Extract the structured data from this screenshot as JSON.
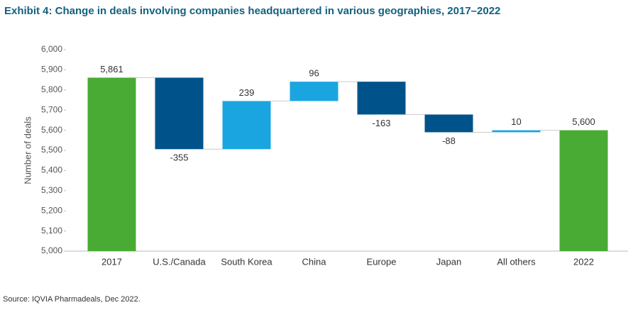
{
  "chart_data": {
    "type": "waterfall",
    "title": "Exhibit 4: Change in deals involving companies headquartered in various geographies, 2017–2022",
    "y_label": "Number of deals",
    "source": "Source: IQVIA Pharmadeals, Dec 2022.",
    "categories": [
      "2017",
      "U.S./Canada",
      "South Korea",
      "China",
      "Europe",
      "Japan",
      "All others",
      "2022"
    ],
    "measure": [
      "absolute",
      "relative",
      "relative",
      "relative",
      "relative",
      "relative",
      "relative",
      "absolute"
    ],
    "values": [
      5861,
      -355,
      239,
      96,
      -163,
      -88,
      10,
      5600
    ],
    "value_labels": [
      "5,861",
      "-355",
      "239",
      "96",
      "-163",
      "-88",
      "10",
      "5,600"
    ],
    "total_color": "#4aab34",
    "increase_color": "#1ba5e0",
    "decrease_color": "#00538a",
    "ylim": [
      5000,
      6000
    ],
    "yticks": [
      {
        "value": 5000,
        "label": "5,000"
      },
      {
        "value": 5100,
        "label": "5,100"
      },
      {
        "value": 5200,
        "label": "5,200"
      },
      {
        "value": 5300,
        "label": "5,300"
      },
      {
        "value": 5400,
        "label": "5,400"
      },
      {
        "value": 5500,
        "label": "5,500"
      },
      {
        "value": 5600,
        "label": "5,600"
      },
      {
        "value": 5700,
        "label": "5,700"
      },
      {
        "value": 5800,
        "label": "5,800"
      },
      {
        "value": 5900,
        "label": "5,900"
      },
      {
        "value": 6000,
        "label": "6,000"
      }
    ],
    "grid": false
  }
}
